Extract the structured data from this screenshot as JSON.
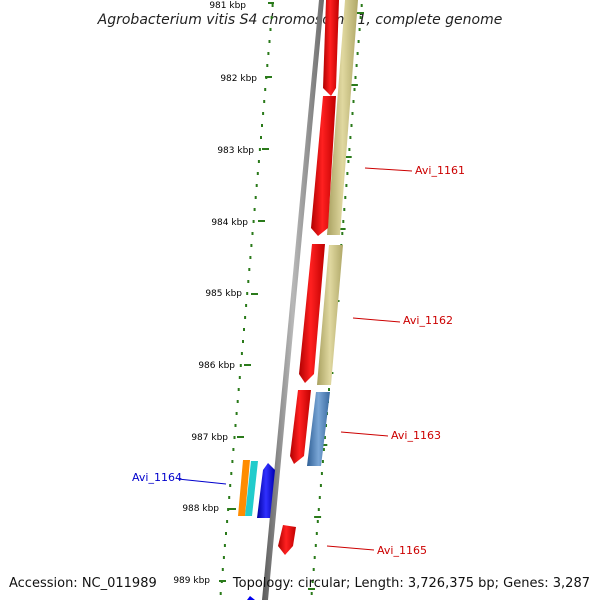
{
  "title": "Agrobacterium vitis S4 chromosome 1, complete genome",
  "footer": {
    "accession": "Accession: NC_011989",
    "summary": "Topology: circular; Length: 3,726,375 bp; Genes: 3,287"
  },
  "scale_labels": [
    "981 kbp",
    "982 kbp",
    "983 kbp",
    "984 kbp",
    "985 kbp",
    "986 kbp",
    "987 kbp",
    "988 kbp",
    "989 kbp"
  ],
  "genes": [
    {
      "name": "Avi_1161",
      "color": "#cc0000"
    },
    {
      "name": "Avi_1162",
      "color": "#cc0000"
    },
    {
      "name": "Avi_1163",
      "color": "#cc0000"
    },
    {
      "name": "Avi_1164",
      "color": "#0000cc"
    },
    {
      "name": "Avi_1165",
      "color": "#cc0000"
    }
  ],
  "colors": {
    "cds_red": "#ff0000",
    "cog_tan": "#c8c080",
    "cog_blue": "#4f7fb5",
    "cog_orange": "#ff8c00",
    "cog_cyan": "#22cccc",
    "cds_blue": "#0000ee",
    "backbone": "#808080",
    "dotted_track": "#2a7a1a"
  }
}
